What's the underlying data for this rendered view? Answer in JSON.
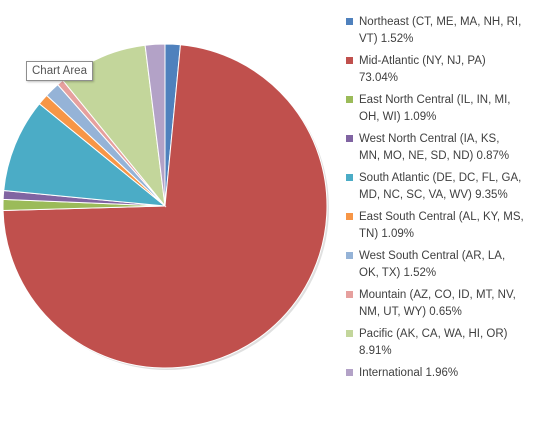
{
  "tooltip": {
    "text": "Chart Area"
  },
  "chart_data": {
    "type": "pie",
    "title": "",
    "start_angle_deg": 0,
    "legend_position": "right",
    "slices": [
      {
        "label": "Northeast (CT, ME, MA, NH, RI,\nVT) 1.52%",
        "value": 1.52,
        "color": "#4F81BD"
      },
      {
        "label": "Mid-Atlantic (NY, NJ, PA)\n73.04%",
        "value": 73.04,
        "color": "#C0504D"
      },
      {
        "label": "East North Central (IL, IN, MI,\nOH, WI) 1.09%",
        "value": 1.09,
        "color": "#9BBB59"
      },
      {
        "label": "West North Central (IA, KS,\nMN, MO, NE, SD, ND) 0.87%",
        "value": 0.87,
        "color": "#8064A2"
      },
      {
        "label": "South Atlantic (DE, DC, FL, GA,\nMD, NC, SC, VA, WV) 9.35%",
        "value": 9.35,
        "color": "#4BACC6"
      },
      {
        "label": "East South Central (AL, KY, MS,\nTN) 1.09%",
        "value": 1.09,
        "color": "#F79646"
      },
      {
        "label": "West South Central (AR, LA,\nOK, TX) 1.52%",
        "value": 1.52,
        "color": "#95B3D7"
      },
      {
        "label": "Mountain (AZ, CO, ID, MT, NV,\nNM, UT, WY) 0.65%",
        "value": 0.65,
        "color": "#E6A09E"
      },
      {
        "label": "Pacific (AK, CA, WA, HI, OR)\n8.91%",
        "value": 8.91,
        "color": "#C3D69B"
      },
      {
        "label": "International 1.96%",
        "value": 1.96,
        "color": "#B3A2C7"
      }
    ]
  }
}
